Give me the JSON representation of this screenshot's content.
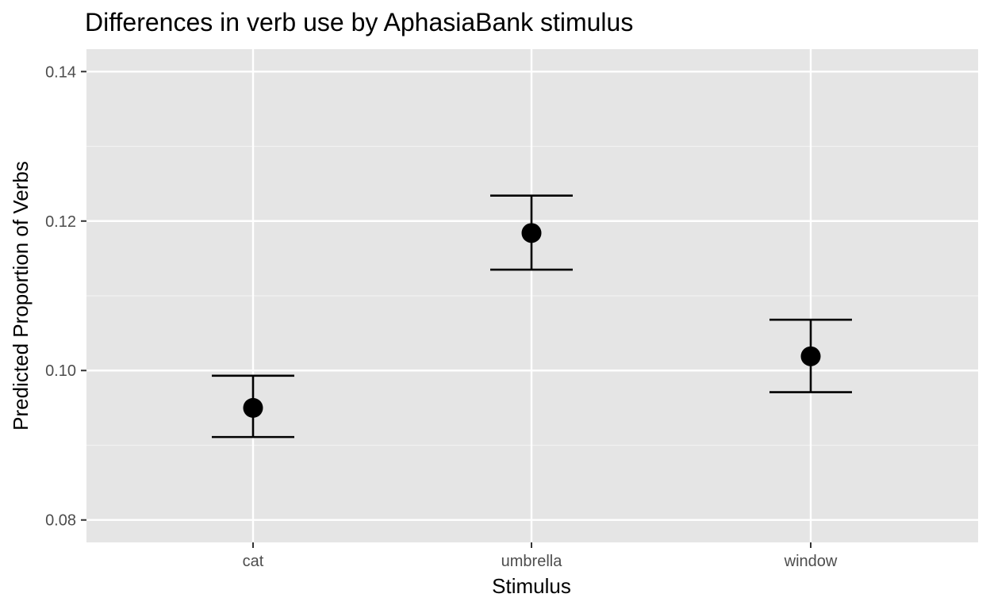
{
  "chart_data": {
    "type": "scatter",
    "title": "Differences in verb use by AphasiaBank stimulus",
    "xlabel": "Stimulus",
    "ylabel": "Predicted Proportion of Verbs",
    "categories": [
      "cat",
      "umbrella",
      "window"
    ],
    "values": [
      0.095,
      0.1184,
      0.1019
    ],
    "error_lower": [
      0.0911,
      0.1135,
      0.0971
    ],
    "error_upper": [
      0.0993,
      0.1234,
      0.1068
    ],
    "ylim": [
      0.077,
      0.143
    ],
    "yticks": [
      0.08,
      0.1,
      0.12,
      0.14
    ],
    "ytick_labels": [
      "0.08",
      "0.10",
      "0.12",
      "0.14"
    ],
    "grid": true,
    "legend": "none",
    "colors": {
      "panel_background": "#e5e5e5",
      "grid_major": "#ffffff",
      "grid_minor": "#f2f2f2",
      "point": "#000000",
      "error_bar": "#000000",
      "tick_label": "#4d4d4d"
    }
  }
}
